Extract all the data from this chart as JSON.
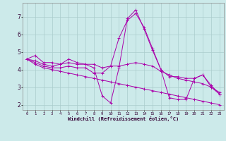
{
  "xlabel": "Windchill (Refroidissement éolien,°C)",
  "bg_color": "#cceaea",
  "grid_color": "#aacccc",
  "line_color": "#aa00aa",
  "xlim": [
    -0.5,
    23.5
  ],
  "ylim": [
    1.7,
    7.8
  ],
  "xticks": [
    0,
    1,
    2,
    3,
    4,
    5,
    6,
    7,
    8,
    9,
    10,
    11,
    12,
    13,
    14,
    15,
    16,
    17,
    18,
    19,
    20,
    21,
    22,
    23
  ],
  "yticks": [
    2,
    3,
    4,
    5,
    6,
    7
  ],
  "series": [
    [
      4.6,
      4.8,
      4.4,
      4.4,
      4.3,
      4.6,
      4.4,
      4.3,
      4.3,
      4.1,
      4.2,
      5.8,
      6.8,
      7.2,
      6.4,
      5.2,
      4.0,
      3.6,
      3.6,
      3.5,
      3.5,
      3.7,
      3.1,
      2.6
    ],
    [
      4.6,
      4.4,
      4.2,
      4.1,
      4.1,
      4.2,
      4.1,
      4.1,
      3.8,
      3.8,
      4.2,
      4.2,
      4.3,
      4.4,
      4.3,
      4.2,
      3.9,
      3.7,
      3.5,
      3.4,
      3.3,
      3.2,
      3.0,
      2.7
    ],
    [
      4.6,
      4.5,
      4.3,
      4.2,
      4.3,
      4.4,
      4.3,
      4.3,
      4.1,
      2.5,
      2.1,
      4.1,
      6.9,
      7.4,
      6.3,
      5.1,
      4.0,
      2.4,
      2.3,
      2.3,
      3.5,
      3.7,
      3.0,
      2.6
    ],
    [
      4.6,
      4.3,
      4.1,
      4.0,
      3.9,
      3.8,
      3.7,
      3.6,
      3.5,
      3.4,
      3.3,
      3.2,
      3.1,
      3.0,
      2.9,
      2.8,
      2.7,
      2.6,
      2.5,
      2.4,
      2.3,
      2.2,
      2.1,
      2.0
    ]
  ]
}
